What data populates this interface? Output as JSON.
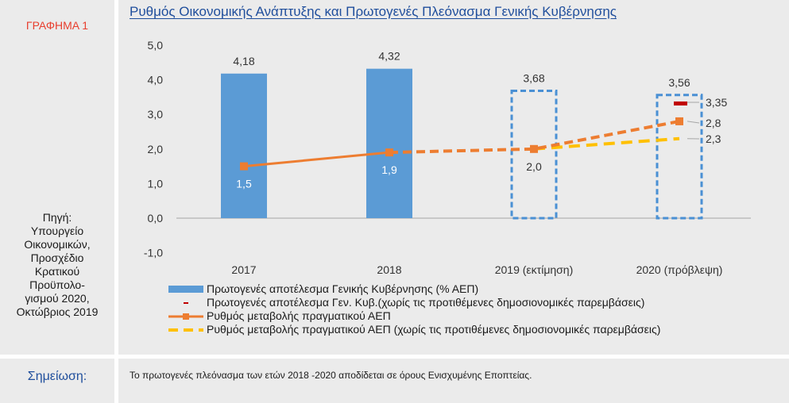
{
  "sidebar": {
    "graph_label": "ΓΡΑΦΗΜΑ 1",
    "source_lines": [
      "Πηγή:",
      "Υπουργείο",
      "Οικονομικών,",
      "Προσχέδιο",
      "Κρατικού",
      "Προϋπολο-",
      "γισμού 2020,",
      "Οκτώβριος 2019"
    ],
    "note_label": "Σημείωση:"
  },
  "note": {
    "text": "Το πρωτογενές πλεόνασμα των ετών 2018 -2020 αποδίδεται σε όρους Ενισχυμένης Εποπτείας."
  },
  "colors": {
    "bar_blue": "#5b9bd5",
    "bar_dash_blue": "#4a90d4",
    "orange": "#ed7d31",
    "yellow": "#ffc000",
    "dark_red": "#c00000",
    "title_blue": "#1f4e9c",
    "label_red": "#e83e2e"
  },
  "chart_data": {
    "type": "bar",
    "title": "Ρυθμός Οικονομικής Ανάπτυξης και Πρωτογενές Πλεόνασμα Γενικής Κυβέρνησης",
    "categories": [
      "2017",
      "2018",
      "2019 (εκτίμηση)",
      "2020 (πρόβλεψη)"
    ],
    "ylim": [
      -1.0,
      5.0
    ],
    "yticks": [
      -1.0,
      0.0,
      1.0,
      2.0,
      3.0,
      4.0,
      5.0
    ],
    "ytick_labels": [
      "-1,0",
      "0,0",
      "1,0",
      "2,0",
      "3,0",
      "4,0",
      "5,0"
    ],
    "series": [
      {
        "name": "Πρωτογενές αποτέλεσμα Γενικής Κυβέρνησης (% ΑΕΠ)",
        "kind": "bar",
        "values": [
          4.18,
          4.32,
          3.68,
          3.56
        ],
        "labels": [
          "4,18",
          "4,32",
          "3,68",
          "3,56"
        ],
        "styles": [
          "solid",
          "solid",
          "dashed",
          "dashed"
        ]
      },
      {
        "name": "Πρωτογενές αποτέλεσμα Γεν. Κυβ.(χωρίς τις προτιθέμενες δημοσιονομικές παρεμβάσεις)",
        "kind": "marker",
        "values": [
          null,
          null,
          null,
          3.35
        ],
        "labels": [
          "",
          "",
          "",
          "3,35"
        ]
      },
      {
        "name": "Ρυθμός μεταβολής πραγματικού ΑΕΠ",
        "kind": "line",
        "values": [
          1.5,
          1.9,
          2.0,
          2.8
        ],
        "labels": [
          "1,5",
          "1,9",
          "2,0",
          "2,8"
        ]
      },
      {
        "name": "Ρυθμός μεταβολής πραγματικού ΑΕΠ (χωρίς τις προτιθέμενες δημοσιονομικές παρεμβάσεις)",
        "kind": "line",
        "values": [
          null,
          null,
          2.0,
          2.3
        ],
        "labels": [
          "",
          "",
          "",
          "2,3"
        ]
      }
    ],
    "legend_position": "bottom"
  }
}
